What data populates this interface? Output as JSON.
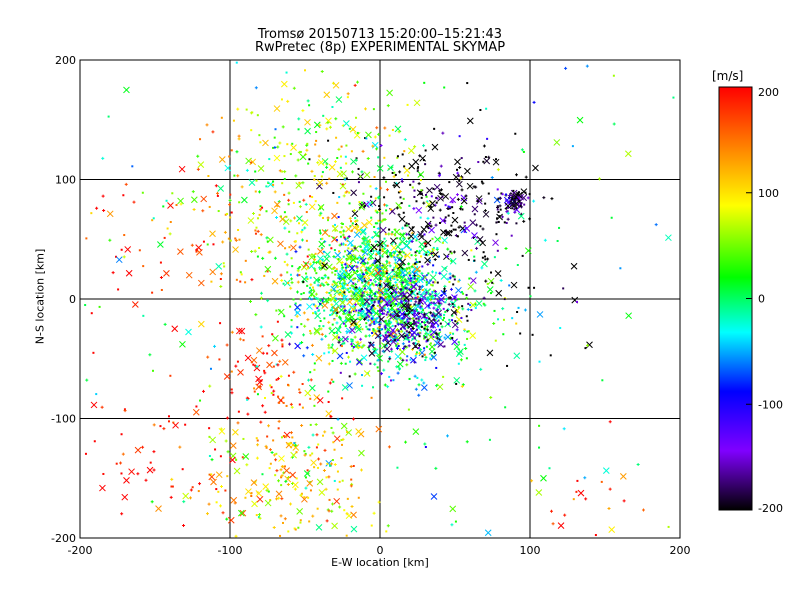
{
  "header": {
    "title": "Tromsø 20150713 15:20:00–15:21:43",
    "subtitle": "RwPretec (8p) EXPERIMENTAL SKYMAP"
  },
  "axes": {
    "xlabel": "E-W location [km]",
    "ylabel": "N-S location [km]"
  },
  "colorbar": {
    "unit": "[m/s]",
    "ticks": [
      200,
      100,
      0,
      -100,
      -200
    ],
    "range": [
      -200,
      200
    ]
  },
  "chart_data": {
    "type": "scatter",
    "title": "Tromsø 20150713 15:20:00–15:21:43",
    "subtitle": "RwPretec (8p) EXPERIMENTAL SKYMAP",
    "xlabel": "E-W location [km]",
    "ylabel": "N-S location [km]",
    "xlim": [
      -200,
      200
    ],
    "ylim": [
      -200,
      200
    ],
    "xticks": [
      -200,
      -100,
      0,
      100,
      200
    ],
    "yticks": [
      -200,
      -100,
      0,
      100,
      200
    ],
    "grid": true,
    "color_scale": {
      "label": "[m/s]",
      "min": -200,
      "max": 200,
      "colors": [
        "#000000",
        "#8000ff",
        "#0000ff",
        "#00ffff",
        "#00ff00",
        "#ffff00",
        "#ff8000",
        "#ff0000"
      ]
    },
    "markers": [
      "x",
      "+",
      "."
    ],
    "point_clusters": [
      {
        "x": 5,
        "y": -5,
        "spread": 30,
        "count": 900,
        "velocity": 0
      },
      {
        "x": -10,
        "y": 20,
        "spread": 25,
        "count": 500,
        "velocity": 40
      },
      {
        "x": 15,
        "y": -15,
        "spread": 18,
        "count": 300,
        "velocity": -150
      },
      {
        "x": 88,
        "y": 82,
        "spread": 5,
        "count": 80,
        "velocity": -180
      },
      {
        "x": 40,
        "y": 80,
        "spread": 30,
        "count": 250,
        "velocity": -210
      },
      {
        "x": -30,
        "y": 110,
        "spread": 35,
        "count": 200,
        "velocity": 60
      },
      {
        "x": -70,
        "y": 70,
        "spread": 40,
        "count": 180,
        "velocity": 110
      },
      {
        "x": -60,
        "y": -150,
        "spread": 30,
        "count": 250,
        "velocity": 100
      },
      {
        "x": -70,
        "y": -70,
        "spread": 20,
        "count": 90,
        "velocity": 190
      },
      {
        "x": -150,
        "y": -130,
        "spread": 30,
        "count": 60,
        "velocity": 200
      },
      {
        "x": -150,
        "y": 60,
        "spread": 40,
        "count": 60,
        "velocity": 200
      },
      {
        "x": 60,
        "y": 20,
        "spread": 40,
        "count": 80,
        "velocity": -220
      },
      {
        "x": 140,
        "y": -170,
        "spread": 20,
        "count": 20,
        "velocity": 180
      },
      {
        "x": 0,
        "y": 0,
        "spread": 140,
        "count": 250,
        "velocity": 0
      }
    ]
  }
}
